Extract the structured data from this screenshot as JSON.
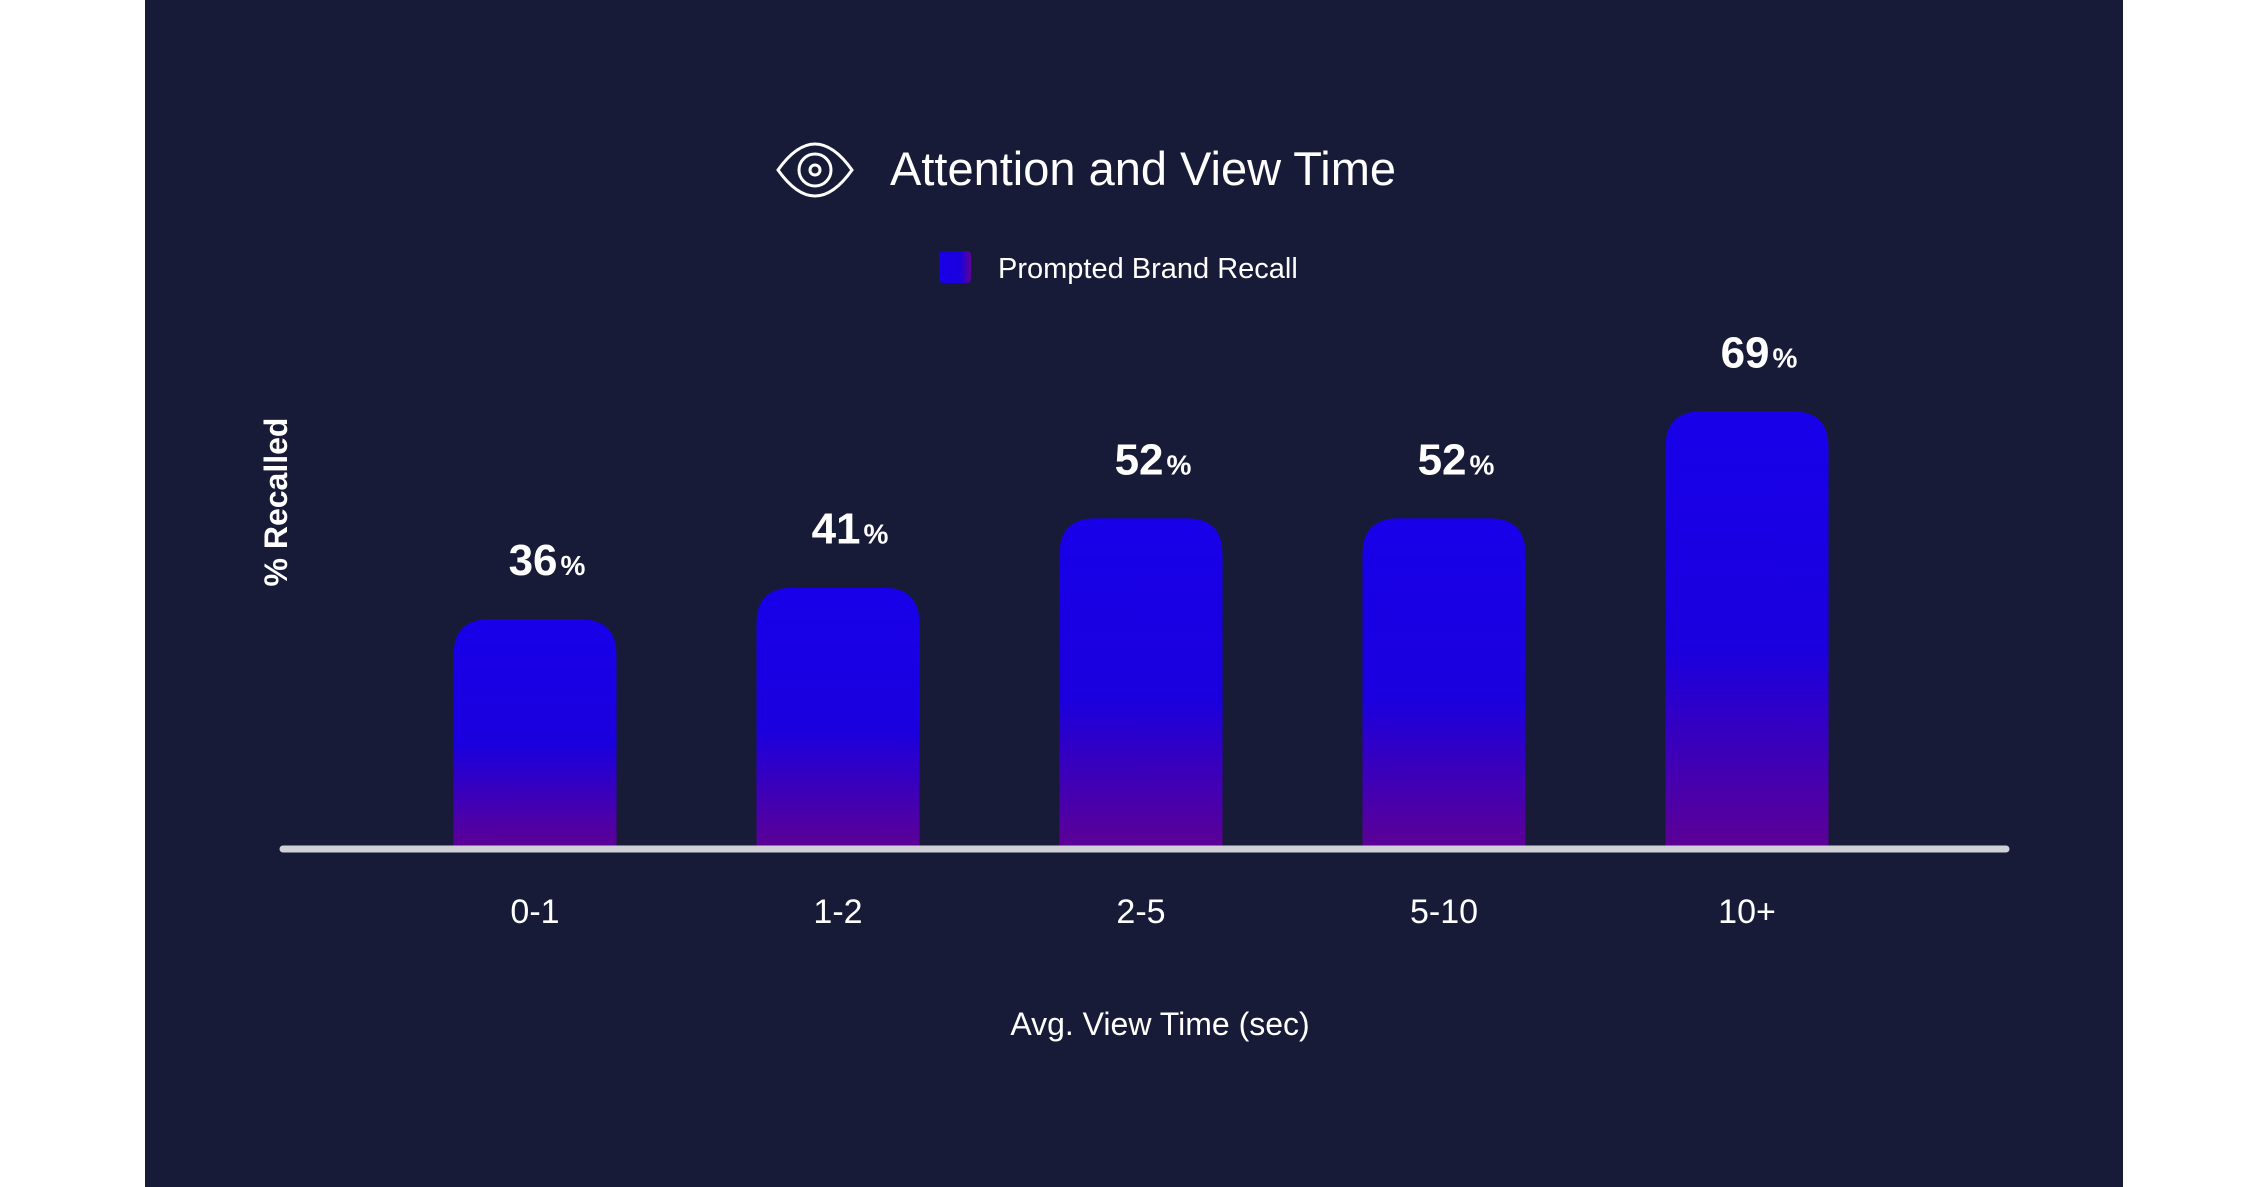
{
  "chart_data": {
    "type": "bar",
    "title": "Attention and View Time",
    "title_icon": "eye-icon",
    "legend": [
      "Prompted Brand Recall"
    ],
    "legend_placement": "top-center",
    "categories": [
      "0-1",
      "1-2",
      "2-5",
      "5-10",
      "10+"
    ],
    "series": [
      {
        "name": "Prompted Brand Recall",
        "values": [
          36,
          41,
          52,
          52,
          69
        ]
      }
    ],
    "value_suffix": "%",
    "xlabel": "Avg. View Time (sec)",
    "ylabel": "% Recalled",
    "ylim": [
      0,
      100
    ],
    "grid": false,
    "colors": {
      "background": "#181b38",
      "bar_top": "#1800e9",
      "bar_mid": "#1a00de",
      "bar_bottom": "#5c0096",
      "baseline": "#d0d0d8",
      "text": "#ffffff"
    }
  }
}
